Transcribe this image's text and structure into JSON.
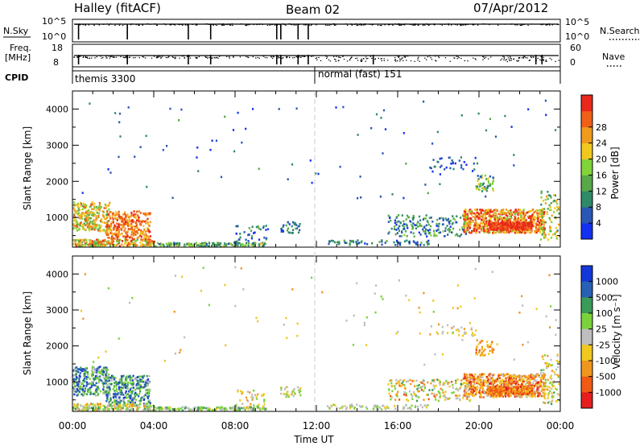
{
  "header": {
    "site": "Halley (fitACF)",
    "beam": "Beam 02",
    "date": "07/Apr/2012"
  },
  "status": {
    "nsky_label": "N.Sky",
    "nsky_ticks": [
      "10^5",
      "10^0"
    ],
    "nsearch_label": "N.Search",
    "nsearch_ticks": [
      "10^5",
      "10^0"
    ],
    "freq_label": "Freq.",
    "freq_unit": "[MHz]",
    "freq_ticks": [
      "18",
      "8"
    ],
    "nave_label": "Nave",
    "nave_ticks": [
      "60",
      "0"
    ],
    "cpid_label": "CPID",
    "cpid_modes": [
      {
        "name": "themis 3300",
        "start_hour": 0
      },
      {
        "name": "normal (fast) 151",
        "start_hour": 12
      }
    ],
    "drop_hours": [
      0.3,
      2.7,
      5.7,
      6.8,
      10.05,
      10.25,
      11.1,
      11.6
    ],
    "freq_drop_hours": [
      0.3,
      2.7,
      5.7,
      6.8,
      10.05,
      10.25,
      11.1,
      11.6,
      14.8,
      22.8,
      23.1
    ]
  },
  "chart_data": [
    {
      "type": "heatmap",
      "name": "power",
      "ylabel": "Slant Range [km]",
      "ylim": [
        180,
        4500
      ],
      "yticks": [
        1000,
        2000,
        3000,
        4000
      ],
      "xlim": [
        0,
        24
      ],
      "colorbar": {
        "label": "Power [dB]",
        "ticks": [
          "4",
          "8",
          "12",
          "16",
          "20",
          "24",
          "28"
        ],
        "colors": [
          "#1430f0",
          "#2a56b4",
          "#2e8a68",
          "#58a84a",
          "#82d23a",
          "#f0c81e",
          "#f09a1e",
          "#f06018",
          "#e8281a"
        ]
      }
    },
    {
      "type": "heatmap",
      "name": "velocity",
      "ylabel": "Slant Range [km]",
      "ylim": [
        180,
        4500
      ],
      "yticks": [
        1000,
        2000,
        3000,
        4000
      ],
      "xlim": [
        0,
        24
      ],
      "xticks": [
        "00:00",
        "04:00",
        "08:00",
        "12:00",
        "16:00",
        "20:00",
        "00:00"
      ],
      "xlabel": "Time UT",
      "colorbar": {
        "label": "Velocity [m s⁻¹]",
        "ticks": [
          "1000",
          "500",
          "100",
          "25",
          "-25",
          "-100",
          "-500",
          "-1000"
        ],
        "colors": [
          "#1438d8",
          "#2860b4",
          "#3a9a58",
          "#7cd23a",
          "#bebebe",
          "#f0c81e",
          "#f0961e",
          "#f05a14",
          "#e61e1e"
        ]
      }
    }
  ]
}
